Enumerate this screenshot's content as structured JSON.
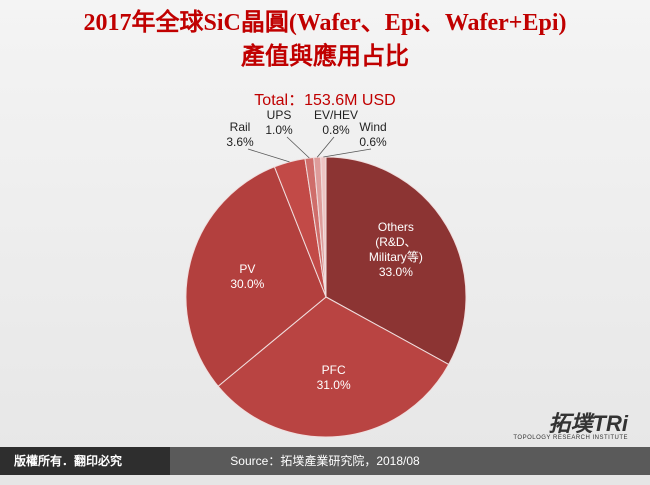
{
  "chart_data": {
    "type": "pie",
    "title": "2017年全球SiC晶圓(Wafer、Epi、Wafer+Epi)",
    "title_line2": "產值與應用占比",
    "subtitle": "Total：153.6M USD",
    "categories": [
      "Others (R&D、Military等)",
      "PFC",
      "PV",
      "Rail",
      "UPS",
      "EV/HEV",
      "Wind"
    ],
    "values": [
      33.0,
      31.0,
      30.0,
      3.6,
      1.0,
      0.8,
      0.6
    ],
    "value_labels": [
      "33.0%",
      "31.0%",
      "30.0%",
      "3.6%",
      "1.0%",
      "0.8%",
      "0.6%"
    ],
    "colors": [
      "#8c3433",
      "#b94442",
      "#b3403e",
      "#c24a47",
      "#cf6d6a",
      "#de9c9a",
      "#eec4c3"
    ],
    "footer": {
      "copyright": "版權所有．翻印必究",
      "source": "Source：拓墣產業研究院，2018/08",
      "logo": "拓墣TRi",
      "logo_sub": "TOPOLOGY RESEARCH INSTITUTE"
    }
  }
}
